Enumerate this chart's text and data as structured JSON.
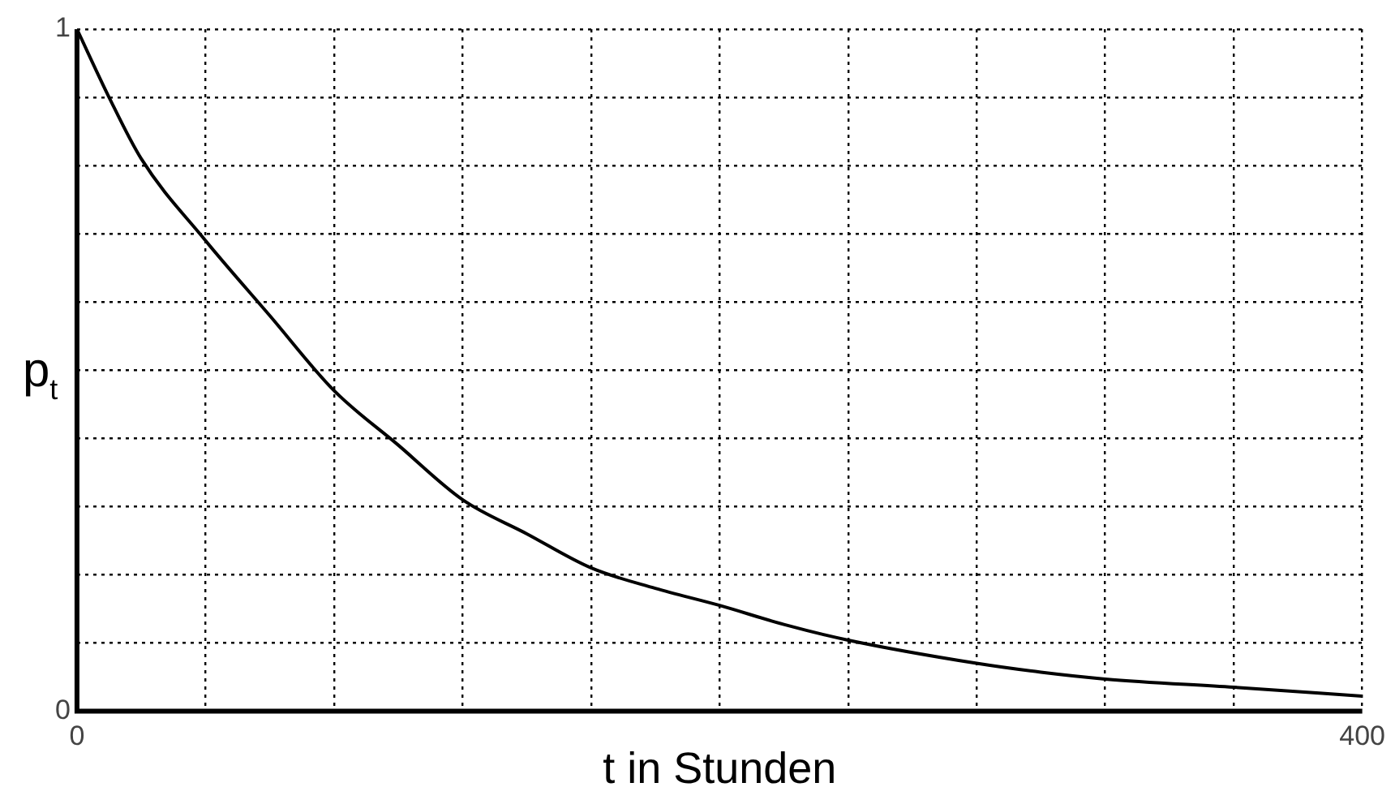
{
  "chart_data": {
    "type": "line",
    "xlabel": "t in Stunden",
    "ylabel": "p$_{t}$",
    "x": [
      0,
      10,
      20,
      40,
      60,
      80,
      100,
      120,
      140,
      160,
      180,
      200,
      220,
      240,
      280,
      300,
      320,
      360,
      400
    ],
    "series": [
      {
        "color": "#000000",
        "values": [
          1,
          0.9,
          0.81,
          0.69,
          0.58,
          0.47,
          0.39,
          0.31,
          0.26,
          0.21,
          0.18,
          0.155,
          0.127,
          0.104,
          0.07,
          0.057,
          0.047,
          0.035,
          0.022
        ]
      }
    ],
    "xlim": [
      0,
      400
    ],
    "ylim": [
      0,
      1
    ],
    "xticks": [
      0,
      {
        "value": 40,
        "label": null
      },
      {
        "value": 80,
        "label": null
      },
      {
        "value": 120,
        "label": null
      },
      {
        "value": 160,
        "label": null
      },
      {
        "value": 200,
        "label": null
      },
      {
        "value": 240,
        "label": null
      },
      {
        "value": 280,
        "label": null
      },
      {
        "value": 320,
        "label": null
      },
      {
        "value": 360,
        "label": null
      },
      400
    ],
    "yticks": [
      0,
      {
        "value": 0.1,
        "label": null
      },
      {
        "value": 0.2,
        "label": null
      },
      {
        "value": 0.3,
        "label": null
      },
      {
        "value": 0.4,
        "label": null
      },
      {
        "value": 0.5,
        "label": null
      },
      {
        "value": 0.6,
        "label": null
      },
      {
        "value": 0.7,
        "label": null
      },
      {
        "value": 0.8,
        "label": null
      },
      {
        "value": 0.9,
        "label": null
      },
      1
    ],
    "grid": true,
    "legend": false,
    "marker": "none",
    "line_style": "solid"
  }
}
